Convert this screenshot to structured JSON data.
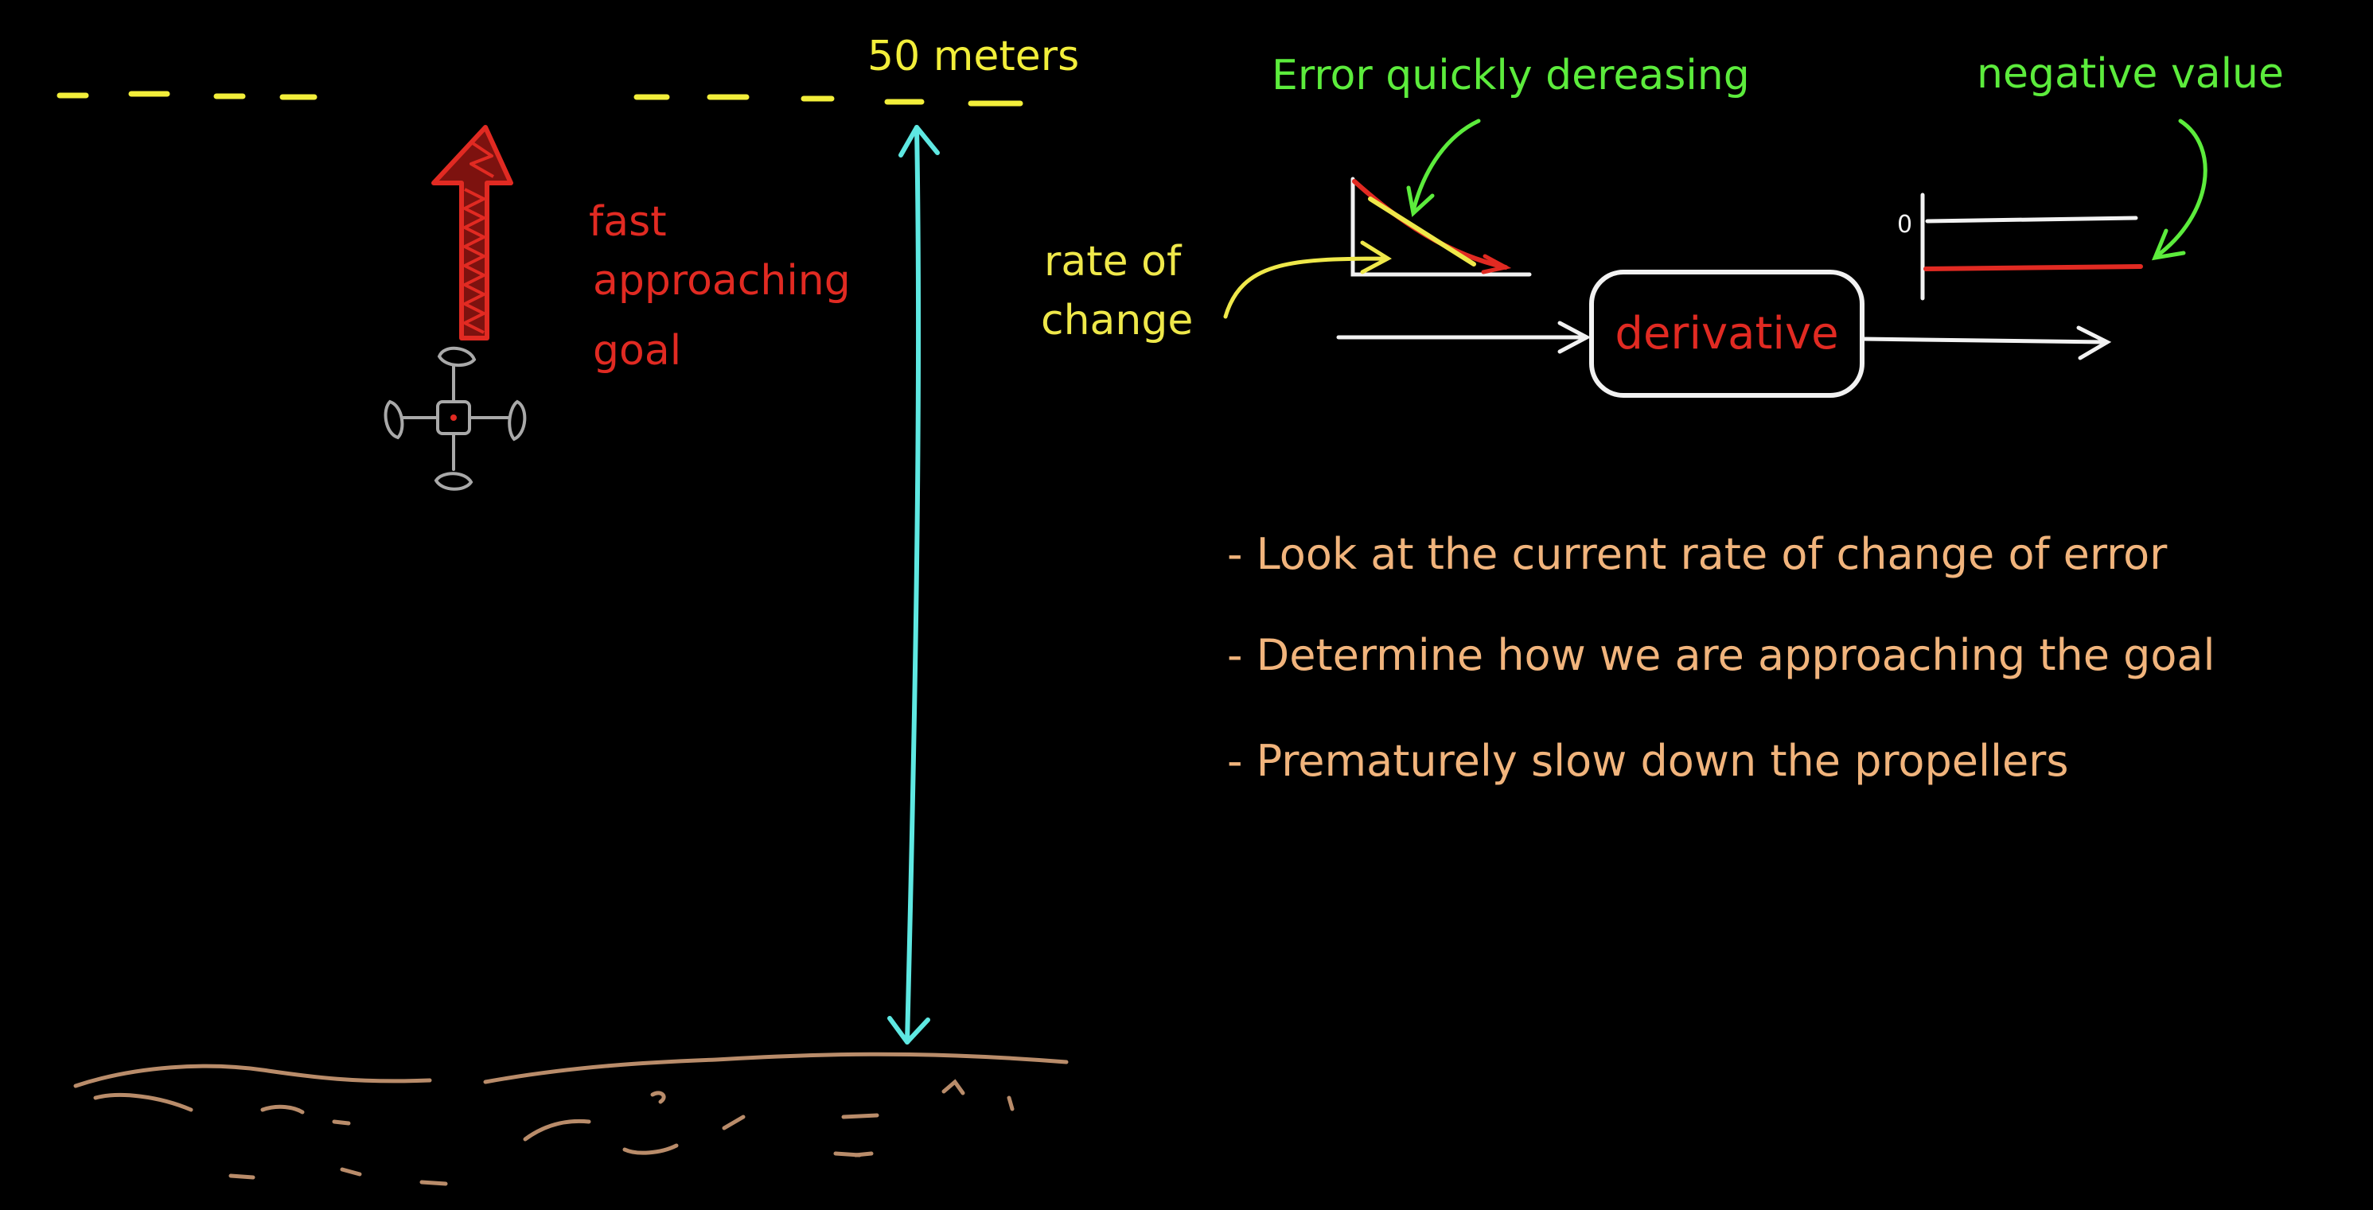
{
  "labels": {
    "distance": "50 meters",
    "fast_approaching": [
      "fast",
      "approaching",
      "goal"
    ],
    "error_quickly": "Error quickly dereasing",
    "negative_value": "negative value",
    "rate_of_change": [
      "rate of",
      "change"
    ],
    "derivative": "derivative",
    "zero_tick": "0"
  },
  "bullets": [
    "- Look at the current rate of change of error",
    "- Determine how we are approaching the goal",
    "- Prematurely slow down the propellers"
  ],
  "colors": {
    "goal_line": "#f2ee3a",
    "arrow_red": "#e12a22",
    "drone": "#a9a9a9",
    "cyan": "#5ee8e2",
    "ground": "#b98c6a",
    "green": "#5cec3c",
    "yellow": "#efe84a",
    "white": "#f2f2f2",
    "bullet_text": "#f1b47c"
  }
}
